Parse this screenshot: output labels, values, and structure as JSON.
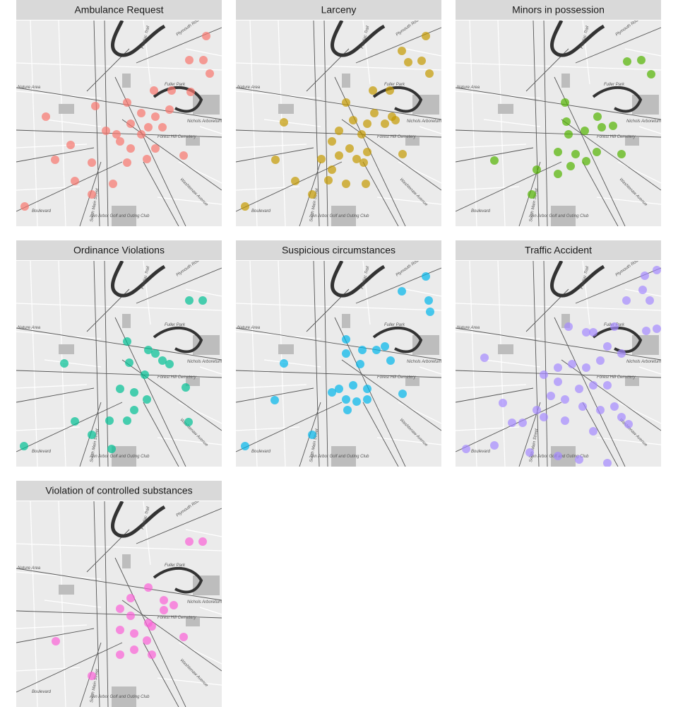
{
  "chart_data": [
    {
      "type": "scatter",
      "title": "Ambulance Request",
      "color": "#f8766d",
      "xlim": [
        0,
        291
      ],
      "ylim": [
        291,
        0
      ],
      "x": [
        269,
        265,
        245,
        274,
        195,
        220,
        112,
        157,
        177,
        197,
        162,
        187,
        207,
        142,
        177,
        197,
        162,
        147,
        237,
        55,
        83,
        107,
        137,
        157,
        185,
        12,
        127,
        77,
        42,
        217,
        247,
        107
      ],
      "y": [
        22,
        56,
        56,
        75,
        99,
        99,
        121,
        116,
        131,
        136,
        146,
        151,
        151,
        161,
        161,
        181,
        181,
        171,
        191,
        197,
        227,
        246,
        231,
        201,
        196,
        263,
        156,
        176,
        136,
        126,
        101,
        201
      ]
    },
    {
      "type": "scatter",
      "title": "Larceny",
      "color": "#c49a00",
      "xlim": [
        0,
        291
      ],
      "ylim": [
        291,
        0
      ],
      "x": [
        269,
        235,
        244,
        263,
        274,
        194,
        218,
        156,
        196,
        221,
        166,
        186,
        211,
        226,
        146,
        178,
        136,
        161,
        186,
        146,
        171,
        136,
        156,
        184,
        131,
        108,
        84,
        56,
        68,
        236,
        13,
        181,
        121
      ],
      "y": [
        22,
        43,
        59,
        57,
        75,
        99,
        99,
        116,
        131,
        136,
        141,
        146,
        146,
        141,
        156,
        161,
        171,
        181,
        186,
        191,
        196,
        211,
        231,
        231,
        226,
        246,
        227,
        197,
        144,
        189,
        263,
        201,
        196
      ]
    },
    {
      "type": "scatter",
      "title": "Minors in possession",
      "color": "#53b400",
      "xlim": [
        0,
        291
      ],
      "ylim": [
        291,
        0
      ],
      "x": [
        243,
        263,
        277,
        155,
        157,
        201,
        207,
        223,
        183,
        160,
        145,
        170,
        185,
        200,
        235,
        115,
        145,
        55,
        108,
        163
      ],
      "y": [
        58,
        56,
        76,
        116,
        143,
        136,
        151,
        149,
        156,
        161,
        186,
        189,
        199,
        186,
        189,
        211,
        217,
        198,
        246,
        206
      ]
    },
    {
      "type": "scatter",
      "title": "Ordinance Violations",
      "color": "#00c094",
      "xlim": [
        0,
        291
      ],
      "ylim": [
        291,
        0
      ],
      "x": [
        264,
        245,
        157,
        160,
        187,
        207,
        147,
        167,
        182,
        185,
        167,
        157,
        132,
        107,
        135,
        83,
        11,
        68,
        240,
        244,
        197,
        217
      ],
      "y": [
        56,
        56,
        114,
        144,
        126,
        141,
        181,
        186,
        161,
        196,
        211,
        226,
        226,
        246,
        266,
        227,
        262,
        145,
        179,
        228,
        131,
        146
      ]
    },
    {
      "type": "scatter",
      "title": "Suspicious circumstances",
      "color": "#00b6eb",
      "xlim": [
        0,
        291
      ],
      "ylim": [
        291,
        0
      ],
      "x": [
        269,
        235,
        273,
        275,
        156,
        156,
        179,
        199,
        219,
        211,
        176,
        146,
        166,
        186,
        156,
        171,
        186,
        158,
        136,
        108,
        55,
        68,
        13,
        236
      ],
      "y": [
        22,
        43,
        56,
        72,
        111,
        131,
        126,
        126,
        141,
        121,
        146,
        181,
        176,
        181,
        196,
        199,
        196,
        211,
        186,
        246,
        197,
        145,
        262,
        188
      ]
    },
    {
      "type": "scatter",
      "title": "Traffic Accident",
      "color": "#a58aff",
      "xlim": [
        0,
        291
      ],
      "ylim": [
        291,
        0
      ],
      "x": [
        268,
        285,
        242,
        265,
        275,
        285,
        270,
        225,
        160,
        195,
        215,
        235,
        205,
        185,
        165,
        145,
        125,
        145,
        175,
        195,
        215,
        155,
        135,
        115,
        125,
        155,
        180,
        205,
        225,
        235,
        245,
        95,
        67,
        41,
        80,
        15,
        55,
        105,
        145,
        175,
        215,
        195,
        185
      ],
      "y": [
        21,
        13,
        56,
        41,
        56,
        96,
        99,
        93,
        93,
        101,
        121,
        131,
        141,
        151,
        146,
        151,
        161,
        171,
        181,
        176,
        176,
        196,
        191,
        211,
        221,
        226,
        206,
        211,
        206,
        221,
        231,
        229,
        201,
        137,
        229,
        266,
        261,
        271,
        276,
        281,
        286,
        241,
        101
      ]
    },
    {
      "type": "scatter",
      "title": "Violation of controlled substances",
      "color": "#fb61d7",
      "xlim": [
        0,
        291
      ],
      "ylim": [
        291,
        0
      ],
      "x": [
        245,
        264,
        162,
        187,
        209,
        223,
        209,
        147,
        162,
        187,
        147,
        167,
        192,
        185,
        237,
        147,
        167,
        56,
        107,
        192
      ],
      "y": [
        57,
        57,
        137,
        122,
        140,
        147,
        154,
        152,
        162,
        172,
        182,
        187,
        177,
        197,
        192,
        217,
        210,
        198,
        247,
        217
      ]
    }
  ],
  "map_labels": [
    "Nature Area",
    "Fuller Park",
    "Nichols Arboretum",
    "Forest Hill Cemetery",
    "Washtenaw Avenue",
    "South Main Street",
    "Plymouth Road",
    "Pontiac Trail",
    "Ann Arbor Golf and Outing Club",
    "Boulevard"
  ]
}
